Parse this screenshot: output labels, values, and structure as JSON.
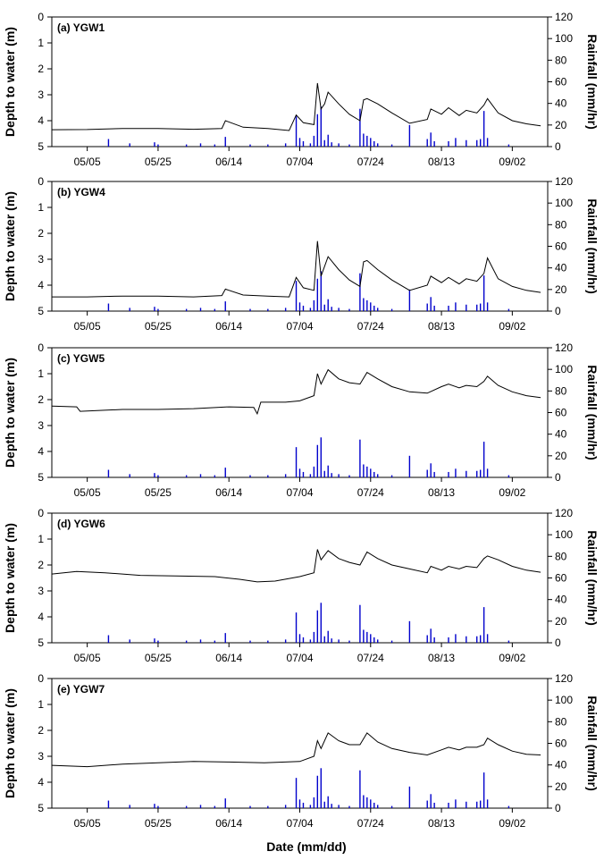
{
  "chart_data": {
    "type": "line+bar",
    "x_axis": {
      "label": "Date (mm/dd)",
      "ticks": [
        "05/05",
        "05/25",
        "06/14",
        "07/04",
        "07/24",
        "08/13",
        "09/02"
      ],
      "start": "04/25",
      "end": "09/12"
    },
    "y_left": {
      "label": "Depth to water (m)",
      "range": [
        0,
        5
      ],
      "inverted": true,
      "ticks": [
        "0",
        "1",
        "2",
        "3",
        "4",
        "5"
      ]
    },
    "y_right": {
      "label": "Rainfall (mm/hr)",
      "range": [
        0,
        120
      ],
      "ticks": [
        "0",
        "20",
        "40",
        "60",
        "80",
        "100",
        "120"
      ]
    },
    "colors": {
      "depth": "#000000",
      "rainfall": "#0000cc"
    },
    "rainfall": [
      {
        "date": "05/11",
        "value": 7
      },
      {
        "date": "05/17",
        "value": 3
      },
      {
        "date": "05/24",
        "value": 4
      },
      {
        "date": "05/25",
        "value": 2
      },
      {
        "date": "06/02",
        "value": 2
      },
      {
        "date": "06/06",
        "value": 3
      },
      {
        "date": "06/10",
        "value": 2
      },
      {
        "date": "06/13",
        "value": 9
      },
      {
        "date": "06/20",
        "value": 2
      },
      {
        "date": "06/25",
        "value": 2
      },
      {
        "date": "06/30",
        "value": 3
      },
      {
        "date": "07/03",
        "value": 28
      },
      {
        "date": "07/04",
        "value": 8
      },
      {
        "date": "07/05",
        "value": 5
      },
      {
        "date": "07/07",
        "value": 3
      },
      {
        "date": "07/08",
        "value": 10
      },
      {
        "date": "07/09",
        "value": 30
      },
      {
        "date": "07/10",
        "value": 37
      },
      {
        "date": "07/11",
        "value": 6
      },
      {
        "date": "07/12",
        "value": 11
      },
      {
        "date": "07/13",
        "value": 4
      },
      {
        "date": "07/15",
        "value": 3
      },
      {
        "date": "07/18",
        "value": 2
      },
      {
        "date": "07/21",
        "value": 35
      },
      {
        "date": "07/22",
        "value": 12
      },
      {
        "date": "07/23",
        "value": 10
      },
      {
        "date": "07/24",
        "value": 8
      },
      {
        "date": "07/25",
        "value": 5
      },
      {
        "date": "07/26",
        "value": 3
      },
      {
        "date": "07/30",
        "value": 2
      },
      {
        "date": "08/04",
        "value": 20
      },
      {
        "date": "08/09",
        "value": 7
      },
      {
        "date": "08/10",
        "value": 13
      },
      {
        "date": "08/11",
        "value": 5
      },
      {
        "date": "08/15",
        "value": 5
      },
      {
        "date": "08/17",
        "value": 8
      },
      {
        "date": "08/20",
        "value": 6
      },
      {
        "date": "08/23",
        "value": 6
      },
      {
        "date": "08/24",
        "value": 7
      },
      {
        "date": "08/25",
        "value": 33
      },
      {
        "date": "08/26",
        "value": 8
      },
      {
        "date": "09/01",
        "value": 2
      }
    ],
    "panels": [
      {
        "title": "(a) YGW1",
        "depth": [
          [
            "04/25",
            4.35
          ],
          [
            "05/05",
            4.34
          ],
          [
            "05/15",
            4.3
          ],
          [
            "05/25",
            4.3
          ],
          [
            "06/04",
            4.33
          ],
          [
            "06/12",
            4.3
          ],
          [
            "06/13",
            4.0
          ],
          [
            "06/18",
            4.25
          ],
          [
            "06/25",
            4.3
          ],
          [
            "07/01",
            4.38
          ],
          [
            "07/03",
            3.78
          ],
          [
            "07/05",
            4.08
          ],
          [
            "07/08",
            4.15
          ],
          [
            "07/09",
            2.55
          ],
          [
            "07/10",
            3.55
          ],
          [
            "07/11",
            3.35
          ],
          [
            "07/12",
            2.9
          ],
          [
            "07/15",
            3.35
          ],
          [
            "07/18",
            3.75
          ],
          [
            "07/21",
            4.0
          ],
          [
            "07/22",
            3.2
          ],
          [
            "07/23",
            3.15
          ],
          [
            "07/26",
            3.35
          ],
          [
            "07/30",
            3.7
          ],
          [
            "08/04",
            4.1
          ],
          [
            "08/09",
            3.95
          ],
          [
            "08/10",
            3.55
          ],
          [
            "08/13",
            3.75
          ],
          [
            "08/15",
            3.5
          ],
          [
            "08/18",
            3.8
          ],
          [
            "08/20",
            3.6
          ],
          [
            "08/23",
            3.7
          ],
          [
            "08/25",
            3.4
          ],
          [
            "08/26",
            3.15
          ],
          [
            "08/29",
            3.7
          ],
          [
            "09/02",
            4.0
          ],
          [
            "09/06",
            4.12
          ],
          [
            "09/10",
            4.2
          ]
        ]
      },
      {
        "title": "(b) YGW4",
        "depth": [
          [
            "04/25",
            4.45
          ],
          [
            "05/05",
            4.45
          ],
          [
            "05/15",
            4.42
          ],
          [
            "05/25",
            4.42
          ],
          [
            "06/04",
            4.45
          ],
          [
            "06/12",
            4.4
          ],
          [
            "06/13",
            4.15
          ],
          [
            "06/18",
            4.38
          ],
          [
            "06/25",
            4.42
          ],
          [
            "07/01",
            4.45
          ],
          [
            "07/03",
            3.7
          ],
          [
            "07/05",
            4.1
          ],
          [
            "07/08",
            4.2
          ],
          [
            "07/09",
            2.3
          ],
          [
            "07/10",
            3.65
          ],
          [
            "07/12",
            2.9
          ],
          [
            "07/15",
            3.4
          ],
          [
            "07/18",
            3.8
          ],
          [
            "07/21",
            4.05
          ],
          [
            "07/22",
            3.1
          ],
          [
            "07/23",
            3.05
          ],
          [
            "07/26",
            3.4
          ],
          [
            "07/30",
            3.8
          ],
          [
            "08/04",
            4.2
          ],
          [
            "08/09",
            4.0
          ],
          [
            "08/10",
            3.65
          ],
          [
            "08/13",
            3.9
          ],
          [
            "08/15",
            3.7
          ],
          [
            "08/18",
            3.95
          ],
          [
            "08/20",
            3.75
          ],
          [
            "08/23",
            3.85
          ],
          [
            "08/25",
            3.55
          ],
          [
            "08/26",
            2.95
          ],
          [
            "08/29",
            3.75
          ],
          [
            "09/02",
            4.05
          ],
          [
            "09/06",
            4.2
          ],
          [
            "09/10",
            4.28
          ]
        ]
      },
      {
        "title": "(c) YGW5",
        "depth": [
          [
            "04/25",
            2.25
          ],
          [
            "05/02",
            2.28
          ],
          [
            "05/03",
            2.45
          ],
          [
            "05/15",
            2.38
          ],
          [
            "05/25",
            2.38
          ],
          [
            "06/04",
            2.35
          ],
          [
            "06/14",
            2.28
          ],
          [
            "06/21",
            2.3
          ],
          [
            "06/22",
            2.55
          ],
          [
            "06/23",
            2.1
          ],
          [
            "06/30",
            2.1
          ],
          [
            "07/04",
            2.05
          ],
          [
            "07/08",
            1.85
          ],
          [
            "07/09",
            1.0
          ],
          [
            "07/10",
            1.4
          ],
          [
            "07/12",
            0.85
          ],
          [
            "07/15",
            1.2
          ],
          [
            "07/18",
            1.35
          ],
          [
            "07/21",
            1.4
          ],
          [
            "07/23",
            0.95
          ],
          [
            "07/26",
            1.2
          ],
          [
            "07/30",
            1.5
          ],
          [
            "08/04",
            1.7
          ],
          [
            "08/09",
            1.75
          ],
          [
            "08/13",
            1.5
          ],
          [
            "08/15",
            1.4
          ],
          [
            "08/18",
            1.55
          ],
          [
            "08/20",
            1.45
          ],
          [
            "08/23",
            1.5
          ],
          [
            "08/25",
            1.3
          ],
          [
            "08/26",
            1.1
          ],
          [
            "08/29",
            1.45
          ],
          [
            "09/02",
            1.7
          ],
          [
            "09/06",
            1.85
          ],
          [
            "09/10",
            1.92
          ]
        ]
      },
      {
        "title": "(d) YGW6",
        "depth": [
          [
            "04/25",
            2.35
          ],
          [
            "05/02",
            2.25
          ],
          [
            "05/10",
            2.3
          ],
          [
            "05/20",
            2.4
          ],
          [
            "05/30",
            2.42
          ],
          [
            "06/10",
            2.45
          ],
          [
            "06/17",
            2.55
          ],
          [
            "06/22",
            2.65
          ],
          [
            "06/27",
            2.62
          ],
          [
            "07/04",
            2.45
          ],
          [
            "07/08",
            2.3
          ],
          [
            "07/09",
            1.4
          ],
          [
            "07/10",
            1.8
          ],
          [
            "07/12",
            1.45
          ],
          [
            "07/15",
            1.75
          ],
          [
            "07/18",
            1.9
          ],
          [
            "07/21",
            2.0
          ],
          [
            "07/23",
            1.5
          ],
          [
            "07/26",
            1.75
          ],
          [
            "07/30",
            2.0
          ],
          [
            "08/04",
            2.15
          ],
          [
            "08/09",
            2.3
          ],
          [
            "08/10",
            2.05
          ],
          [
            "08/13",
            2.2
          ],
          [
            "08/15",
            2.05
          ],
          [
            "08/18",
            2.15
          ],
          [
            "08/20",
            2.05
          ],
          [
            "08/23",
            2.1
          ],
          [
            "08/25",
            1.75
          ],
          [
            "08/26",
            1.65
          ],
          [
            "08/29",
            1.8
          ],
          [
            "09/02",
            2.05
          ],
          [
            "09/06",
            2.2
          ],
          [
            "09/10",
            2.28
          ]
        ]
      },
      {
        "title": "(e) YGW7",
        "depth": [
          [
            "04/25",
            3.35
          ],
          [
            "05/05",
            3.4
          ],
          [
            "05/15",
            3.3
          ],
          [
            "05/25",
            3.25
          ],
          [
            "06/04",
            3.2
          ],
          [
            "06/14",
            3.22
          ],
          [
            "06/24",
            3.25
          ],
          [
            "07/04",
            3.2
          ],
          [
            "07/08",
            3.0
          ],
          [
            "07/09",
            2.4
          ],
          [
            "07/10",
            2.7
          ],
          [
            "07/12",
            2.1
          ],
          [
            "07/15",
            2.4
          ],
          [
            "07/18",
            2.55
          ],
          [
            "07/21",
            2.55
          ],
          [
            "07/23",
            2.1
          ],
          [
            "07/26",
            2.45
          ],
          [
            "07/30",
            2.7
          ],
          [
            "08/04",
            2.85
          ],
          [
            "08/09",
            2.95
          ],
          [
            "08/13",
            2.75
          ],
          [
            "08/15",
            2.65
          ],
          [
            "08/18",
            2.75
          ],
          [
            "08/20",
            2.65
          ],
          [
            "08/23",
            2.65
          ],
          [
            "08/25",
            2.55
          ],
          [
            "08/26",
            2.3
          ],
          [
            "08/29",
            2.55
          ],
          [
            "09/02",
            2.8
          ],
          [
            "09/06",
            2.92
          ],
          [
            "09/10",
            2.95
          ]
        ]
      }
    ]
  }
}
